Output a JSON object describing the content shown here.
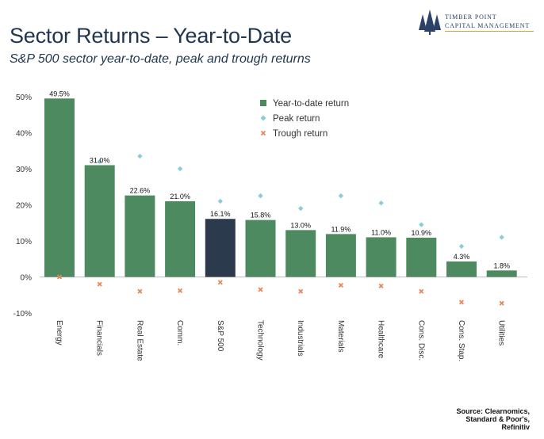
{
  "header": {
    "title": "Sector Returns – Year-to-Date",
    "subtitle": "S&P 500 sector year-to-date, peak and trough returns"
  },
  "logo": {
    "line1": "TIMBER POINT",
    "line2": "CAPITAL MANAGEMENT",
    "icon": "pine-trees-icon"
  },
  "source": {
    "line1": "Source: Clearnomics,",
    "line2": "Standard & Poor's,",
    "line3": "Refinitiv"
  },
  "chart_data": {
    "type": "bar",
    "categories": [
      "Energy",
      "Financials",
      "Real Estate",
      "Comm.",
      "S&P 500",
      "Technology",
      "Industrials",
      "Materials",
      "Healthcare",
      "Cons. Disc.",
      "Cons. Stap.",
      "Utilities"
    ],
    "series": [
      {
        "name": "Year-to-date return",
        "kind": "bar",
        "color": "#4e8a5f",
        "highlight_color": "#2b3a4c",
        "highlight_category": "S&P 500",
        "values": [
          49.5,
          31.0,
          22.6,
          21.0,
          16.1,
          15.8,
          13.0,
          11.9,
          11.0,
          10.9,
          4.3,
          1.8
        ]
      },
      {
        "name": "Peak return",
        "kind": "marker",
        "marker": "diamond",
        "color": "#8ccbdc",
        "values": [
          null,
          32,
          33.5,
          30,
          21,
          22.5,
          19,
          22.5,
          20.5,
          14.5,
          8.5,
          11
        ]
      },
      {
        "name": "Trough return",
        "kind": "marker",
        "marker": "x",
        "color": "#e8865a",
        "values": [
          0,
          -2,
          -4,
          -3.8,
          -1.5,
          -3.5,
          -4,
          -2.3,
          -2.5,
          -4,
          -7,
          -7.3
        ]
      }
    ],
    "data_labels": [
      "49.5%",
      "31.0%",
      "22.6%",
      "21.0%",
      "16.1%",
      "15.8%",
      "13.0%",
      "11.9%",
      "11.0%",
      "10.9%",
      "4.3%",
      "1.8%"
    ],
    "y_ticks": [
      50,
      40,
      30,
      20,
      10,
      0,
      -10
    ],
    "y_tick_labels": [
      "50%",
      "40%",
      "30%",
      "20%",
      "10%",
      "0%",
      "-10%"
    ],
    "ylim": [
      -10,
      50
    ],
    "grid": false,
    "legend_position": "top-right",
    "xlabel": "",
    "ylabel": ""
  }
}
